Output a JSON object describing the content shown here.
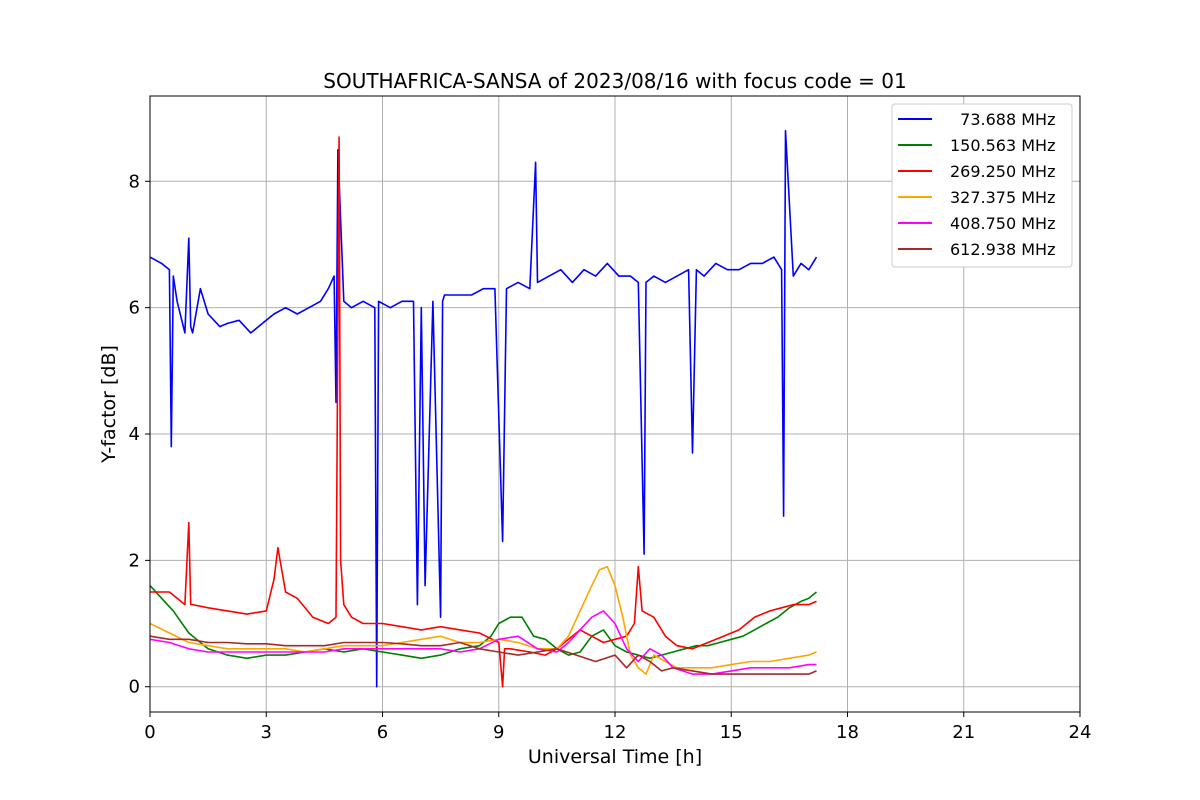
{
  "chart_data": {
    "type": "line",
    "title": "SOUTHAFRICA-SANSA of 2023/08/16 with focus code = 01",
    "xlabel": "Universal Time [h]",
    "ylabel": "Y-factor [dB]",
    "xlim": [
      0,
      24
    ],
    "ylim": [
      -0.4,
      9.35
    ],
    "xticks": [
      "0",
      "3",
      "6",
      "9",
      "12",
      "15",
      "18",
      "21",
      "24"
    ],
    "yticks": [
      "0",
      "2",
      "4",
      "6",
      "8"
    ],
    "grid": true,
    "legend_position": "top-right",
    "series": [
      {
        "name": "  73.688 MHz",
        "color": "#0000ff",
        "x": [
          0,
          0.3,
          0.5,
          0.55,
          0.6,
          0.7,
          0.9,
          1.0,
          1.05,
          1.1,
          1.3,
          1.5,
          1.8,
          2.0,
          2.3,
          2.6,
          2.9,
          3.2,
          3.5,
          3.8,
          4.1,
          4.4,
          4.6,
          4.75,
          4.8,
          4.85,
          5.0,
          5.2,
          5.5,
          5.8,
          5.85,
          5.9,
          6.2,
          6.5,
          6.8,
          6.9,
          7.0,
          7.1,
          7.3,
          7.5,
          7.55,
          7.6,
          8.0,
          8.3,
          8.6,
          8.9,
          9.1,
          9.2,
          9.5,
          9.8,
          9.95,
          10.0,
          10.3,
          10.6,
          10.9,
          11.2,
          11.5,
          11.8,
          12.1,
          12.4,
          12.6,
          12.75,
          12.8,
          13.0,
          13.3,
          13.6,
          13.9,
          14.0,
          14.1,
          14.3,
          14.6,
          14.9,
          15.2,
          15.5,
          15.8,
          16.1,
          16.3,
          16.35,
          16.4,
          16.6,
          16.8,
          17.0,
          17.2
        ],
        "y": [
          6.8,
          6.7,
          6.6,
          3.8,
          6.5,
          6.1,
          5.6,
          7.1,
          5.7,
          5.6,
          6.3,
          5.9,
          5.7,
          5.75,
          5.8,
          5.6,
          5.75,
          5.9,
          6.0,
          5.9,
          6.0,
          6.1,
          6.3,
          6.5,
          4.5,
          8.5,
          6.1,
          6.0,
          6.1,
          6.0,
          0.0,
          6.1,
          6.0,
          6.1,
          6.1,
          1.3,
          6.0,
          1.6,
          6.1,
          1.1,
          6.1,
          6.2,
          6.2,
          6.2,
          6.3,
          6.3,
          2.3,
          6.3,
          6.4,
          6.3,
          8.3,
          6.4,
          6.5,
          6.6,
          6.4,
          6.6,
          6.5,
          6.7,
          6.5,
          6.5,
          6.4,
          2.1,
          6.4,
          6.5,
          6.4,
          6.5,
          6.6,
          3.7,
          6.6,
          6.5,
          6.7,
          6.6,
          6.6,
          6.7,
          6.7,
          6.8,
          6.6,
          2.7,
          8.8,
          6.5,
          6.7,
          6.6,
          6.8
        ]
      },
      {
        "name": "150.563 MHz",
        "color": "#008000",
        "x": [
          0,
          0.3,
          0.6,
          1.0,
          1.5,
          2.0,
          2.5,
          3.0,
          3.5,
          4.0,
          4.5,
          5.0,
          5.5,
          6.0,
          6.5,
          7.0,
          7.5,
          8.0,
          8.5,
          8.8,
          9.0,
          9.3,
          9.6,
          9.9,
          10.2,
          10.5,
          10.8,
          11.1,
          11.4,
          11.7,
          12.0,
          12.3,
          12.6,
          12.9,
          13.2,
          13.5,
          13.8,
          14.1,
          14.4,
          14.7,
          15.0,
          15.3,
          15.6,
          15.9,
          16.2,
          16.5,
          16.8,
          17.0,
          17.2
        ],
        "y": [
          1.6,
          1.4,
          1.2,
          0.85,
          0.6,
          0.5,
          0.45,
          0.5,
          0.5,
          0.55,
          0.6,
          0.55,
          0.6,
          0.55,
          0.5,
          0.45,
          0.5,
          0.6,
          0.65,
          0.8,
          1.0,
          1.1,
          1.1,
          0.8,
          0.75,
          0.6,
          0.5,
          0.55,
          0.8,
          0.9,
          0.65,
          0.55,
          0.5,
          0.45,
          0.5,
          0.55,
          0.6,
          0.65,
          0.65,
          0.7,
          0.75,
          0.8,
          0.9,
          1.0,
          1.1,
          1.25,
          1.35,
          1.4,
          1.5
        ]
      },
      {
        "name": "269.250 MHz",
        "color": "#ff0000",
        "x": [
          0,
          0.5,
          0.9,
          1.0,
          1.05,
          1.1,
          1.5,
          2.0,
          2.5,
          3.0,
          3.2,
          3.3,
          3.5,
          3.8,
          4.2,
          4.6,
          4.8,
          4.88,
          4.92,
          5.0,
          5.2,
          5.5,
          6.0,
          6.5,
          7.0,
          7.5,
          8.0,
          8.5,
          9.0,
          9.1,
          9.15,
          9.3,
          9.8,
          10.2,
          10.5,
          10.8,
          11.1,
          11.4,
          11.7,
          12.0,
          12.3,
          12.5,
          12.6,
          12.7,
          13.0,
          13.3,
          13.6,
          14.0,
          14.4,
          14.8,
          15.2,
          15.6,
          16.0,
          16.3,
          16.6,
          17.0,
          17.2
        ],
        "y": [
          1.5,
          1.5,
          1.3,
          2.6,
          1.3,
          1.3,
          1.25,
          1.2,
          1.15,
          1.2,
          1.7,
          2.2,
          1.5,
          1.4,
          1.1,
          1.0,
          1.1,
          8.7,
          2.0,
          1.3,
          1.1,
          1.0,
          1.0,
          0.95,
          0.9,
          0.95,
          0.9,
          0.85,
          0.7,
          0.0,
          0.6,
          0.6,
          0.55,
          0.5,
          0.6,
          0.75,
          0.9,
          0.8,
          0.7,
          0.75,
          0.8,
          1.0,
          1.9,
          1.2,
          1.1,
          0.8,
          0.65,
          0.6,
          0.7,
          0.8,
          0.9,
          1.1,
          1.2,
          1.25,
          1.3,
          1.3,
          1.35
        ]
      },
      {
        "name": "327.375 MHz",
        "color": "#ffa500",
        "x": [
          0,
          0.5,
          1.0,
          1.5,
          2.0,
          2.5,
          3.0,
          3.5,
          4.0,
          4.5,
          5.0,
          5.5,
          6.0,
          6.5,
          7.0,
          7.5,
          8.0,
          8.5,
          9.0,
          9.5,
          10.0,
          10.5,
          10.8,
          11.1,
          11.4,
          11.6,
          11.8,
          12.0,
          12.2,
          12.4,
          12.6,
          12.8,
          13.0,
          13.3,
          13.6,
          14.0,
          14.5,
          15.0,
          15.5,
          16.0,
          16.5,
          17.0,
          17.2
        ],
        "y": [
          1.0,
          0.85,
          0.7,
          0.65,
          0.6,
          0.6,
          0.6,
          0.6,
          0.55,
          0.6,
          0.65,
          0.65,
          0.65,
          0.7,
          0.75,
          0.8,
          0.7,
          0.7,
          0.75,
          0.7,
          0.6,
          0.6,
          0.8,
          1.2,
          1.6,
          1.85,
          1.9,
          1.6,
          1.1,
          0.5,
          0.3,
          0.2,
          0.5,
          0.4,
          0.3,
          0.3,
          0.3,
          0.35,
          0.4,
          0.4,
          0.45,
          0.5,
          0.55
        ]
      },
      {
        "name": "408.750 MHz",
        "color": "#ff00ff",
        "x": [
          0,
          0.5,
          1.0,
          1.5,
          2.0,
          2.5,
          3.0,
          3.5,
          4.0,
          4.5,
          5.0,
          5.5,
          6.0,
          6.5,
          7.0,
          7.5,
          8.0,
          8.5,
          9.0,
          9.5,
          10.0,
          10.5,
          10.8,
          11.1,
          11.4,
          11.7,
          12.0,
          12.3,
          12.6,
          12.9,
          13.2,
          13.5,
          14.0,
          14.5,
          15.0,
          15.5,
          16.0,
          16.5,
          17.0,
          17.2
        ],
        "y": [
          0.75,
          0.7,
          0.6,
          0.55,
          0.55,
          0.55,
          0.55,
          0.55,
          0.55,
          0.55,
          0.6,
          0.6,
          0.6,
          0.6,
          0.6,
          0.6,
          0.55,
          0.6,
          0.75,
          0.8,
          0.6,
          0.55,
          0.7,
          0.9,
          1.1,
          1.2,
          1.0,
          0.6,
          0.4,
          0.6,
          0.5,
          0.3,
          0.2,
          0.2,
          0.25,
          0.3,
          0.3,
          0.3,
          0.35,
          0.35
        ]
      },
      {
        "name": "612.938 MHz",
        "color": "#a52a2a",
        "x": [
          0,
          0.5,
          1.0,
          1.5,
          2.0,
          2.5,
          3.0,
          3.5,
          4.0,
          4.5,
          5.0,
          5.5,
          6.0,
          6.5,
          7.0,
          7.5,
          8.0,
          8.5,
          9.0,
          9.5,
          10.0,
          10.5,
          11.0,
          11.5,
          12.0,
          12.3,
          12.6,
          12.9,
          13.2,
          13.5,
          14.0,
          14.5,
          15.0,
          15.5,
          16.0,
          16.5,
          17.0,
          17.2
        ],
        "y": [
          0.8,
          0.75,
          0.75,
          0.7,
          0.7,
          0.68,
          0.68,
          0.65,
          0.65,
          0.65,
          0.7,
          0.7,
          0.7,
          0.68,
          0.65,
          0.65,
          0.7,
          0.6,
          0.55,
          0.5,
          0.55,
          0.6,
          0.5,
          0.4,
          0.5,
          0.3,
          0.5,
          0.4,
          0.25,
          0.3,
          0.25,
          0.2,
          0.2,
          0.2,
          0.2,
          0.2,
          0.2,
          0.25
        ]
      }
    ]
  }
}
